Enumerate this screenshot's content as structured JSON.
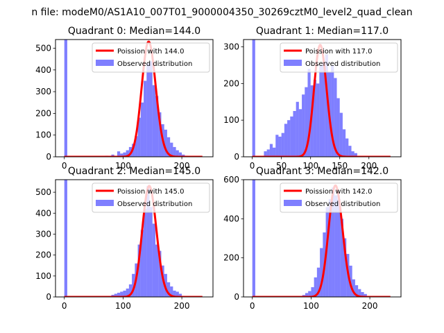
{
  "suptitle": "n file: modeM0/AS1A10_007T01_9000004350_30269cztM0_level2_quad_clean",
  "chart_data": [
    {
      "type": "bar",
      "quadrant": 0,
      "title": "Quadrant 0: Median=144.0",
      "xlim": [
        -15,
        253
      ],
      "ylim": [
        0,
        540
      ],
      "xticks": [
        0,
        100,
        200
      ],
      "yticks": [
        0,
        100,
        200,
        300,
        400,
        500
      ],
      "bin_width": 5,
      "legend": [
        "Poission with 144.0",
        "Observed distribution"
      ],
      "median": 144.0,
      "poisson_peak": 530,
      "hist_x": [
        0,
        70,
        80,
        90,
        95,
        100,
        105,
        110,
        115,
        120,
        125,
        130,
        135,
        140,
        145,
        150,
        155,
        160,
        165,
        170,
        175,
        180,
        185,
        190,
        195,
        200,
        205
      ],
      "hist_y": [
        540,
        5,
        10,
        25,
        15,
        20,
        30,
        45,
        60,
        95,
        180,
        250,
        350,
        430,
        440,
        330,
        280,
        205,
        150,
        125,
        90,
        65,
        45,
        30,
        20,
        10,
        5
      ]
    },
    {
      "type": "bar",
      "quadrant": 1,
      "title": "Quadrant 1: Median=117.0",
      "xlim": [
        -15,
        255
      ],
      "ylim": [
        0,
        320
      ],
      "xticks": [
        0,
        50,
        100,
        150,
        200
      ],
      "yticks": [
        0,
        100,
        200,
        300
      ],
      "bin_width": 5,
      "legend": [
        "Poission with 117.0",
        "Observed distribution"
      ],
      "median": 117.0,
      "poisson_peak": 305,
      "hist_x": [
        0,
        20,
        25,
        30,
        35,
        40,
        45,
        50,
        55,
        60,
        65,
        70,
        75,
        80,
        85,
        90,
        95,
        100,
        105,
        110,
        115,
        120,
        125,
        130,
        135,
        140,
        145,
        150,
        155,
        160,
        165,
        170,
        175
      ],
      "hist_y": [
        320,
        15,
        20,
        35,
        25,
        60,
        55,
        65,
        90,
        100,
        110,
        125,
        150,
        130,
        170,
        190,
        240,
        195,
        210,
        200,
        250,
        260,
        280,
        230,
        250,
        215,
        160,
        120,
        75,
        50,
        30,
        15,
        10
      ]
    },
    {
      "type": "bar",
      "quadrant": 2,
      "title": "Quadrant 2: Median=145.0",
      "xlim": [
        -15,
        253
      ],
      "ylim": [
        0,
        560
      ],
      "xticks": [
        0,
        100,
        200
      ],
      "yticks": [
        0,
        100,
        200,
        300,
        400,
        500
      ],
      "bin_width": 5,
      "legend": [
        "Poission with 145.0",
        "Observed distribution"
      ],
      "median": 145.0,
      "poisson_peak": 530,
      "hist_x": [
        0,
        75,
        80,
        85,
        90,
        95,
        100,
        105,
        110,
        115,
        120,
        125,
        130,
        135,
        140,
        145,
        150,
        155,
        160,
        165,
        170,
        175,
        180,
        185,
        190,
        195,
        200
      ],
      "hist_y": [
        560,
        5,
        10,
        15,
        20,
        25,
        30,
        40,
        60,
        110,
        160,
        250,
        320,
        420,
        530,
        430,
        350,
        250,
        220,
        150,
        110,
        70,
        50,
        30,
        25,
        15,
        5
      ]
    },
    {
      "type": "bar",
      "quadrant": 3,
      "title": "Quadrant 3: Median=142.0",
      "xlim": [
        -15,
        253
      ],
      "ylim": [
        0,
        600
      ],
      "xticks": [
        0,
        100,
        200
      ],
      "yticks": [
        0,
        200,
        400,
        600
      ],
      "bin_width": 5,
      "legend": [
        "Poission with 142.0",
        "Observed distribution"
      ],
      "median": 142.0,
      "poisson_peak": 570,
      "hist_x": [
        0,
        85,
        90,
        95,
        100,
        105,
        110,
        115,
        120,
        125,
        130,
        135,
        140,
        145,
        150,
        155,
        160,
        165,
        170,
        175,
        180,
        185,
        190,
        195
      ],
      "hist_y": [
        600,
        10,
        20,
        30,
        50,
        100,
        150,
        250,
        330,
        460,
        500,
        560,
        520,
        500,
        400,
        300,
        220,
        160,
        90,
        60,
        40,
        25,
        15,
        5
      ]
    }
  ]
}
